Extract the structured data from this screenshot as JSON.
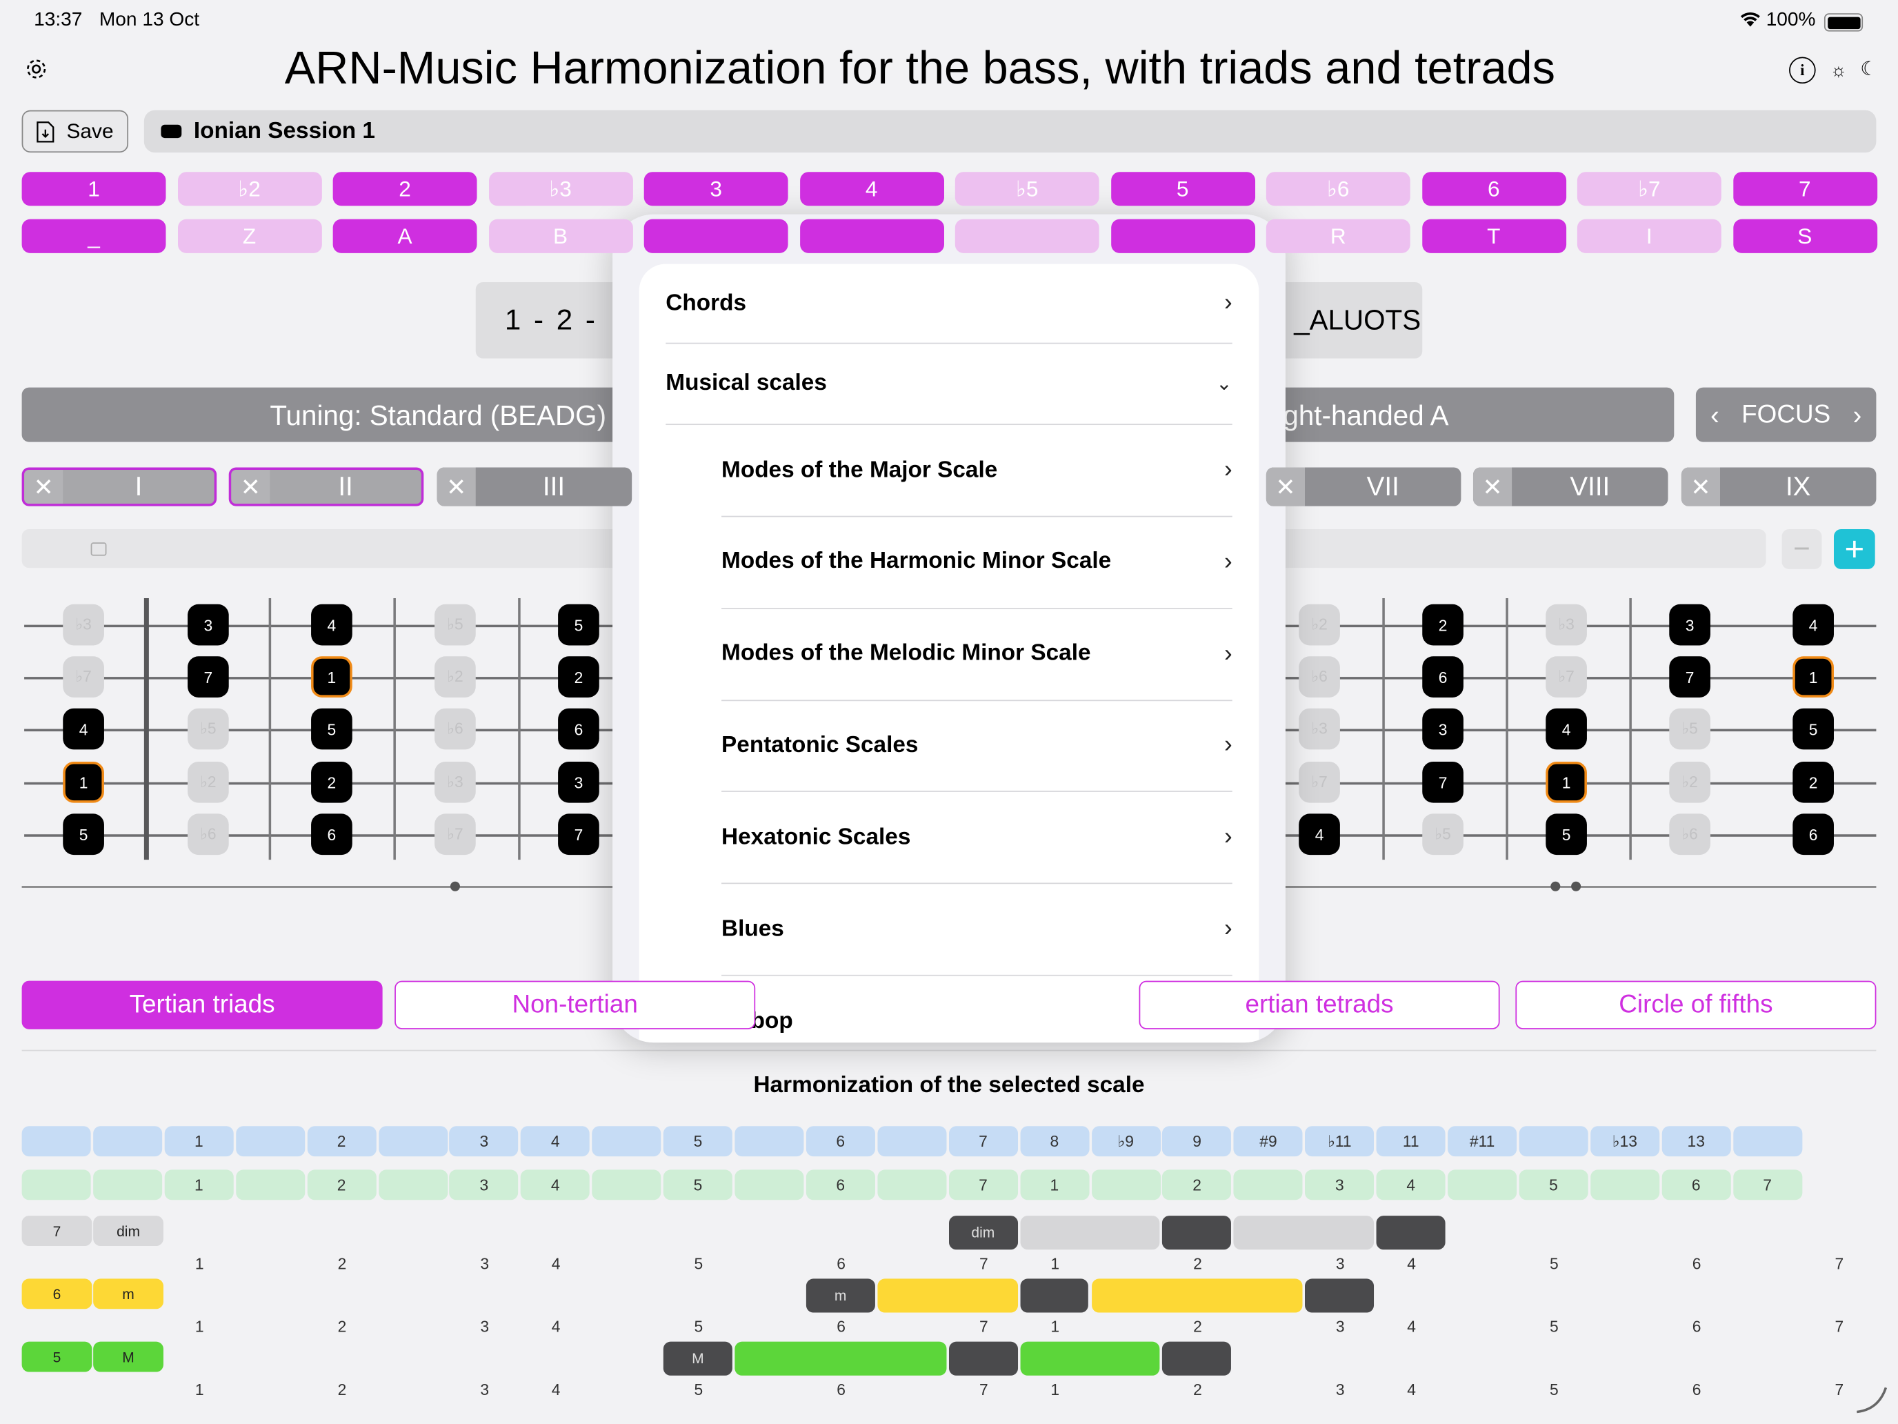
{
  "status": {
    "time": "13:37",
    "date": "Mon 13 Oct",
    "battery": "100%"
  },
  "header": {
    "title": "ARN-Music   Harmonization for the bass, with triads and tetrads"
  },
  "toolbar": {
    "save_label": "Save",
    "session": "Ionian Session 1"
  },
  "degrees": [
    {
      "label": "1",
      "on": true
    },
    {
      "label": "♭2",
      "on": false
    },
    {
      "label": "2",
      "on": true
    },
    {
      "label": "♭3",
      "on": false
    },
    {
      "label": "3",
      "on": true
    },
    {
      "label": "4",
      "on": true
    },
    {
      "label": "♭5",
      "on": false
    },
    {
      "label": "5",
      "on": true
    },
    {
      "label": "♭6",
      "on": false
    },
    {
      "label": "6",
      "on": true
    },
    {
      "label": "♭7",
      "on": false
    },
    {
      "label": "7",
      "on": true
    }
  ],
  "letters": [
    {
      "label": "_",
      "on": true
    },
    {
      "label": "Z",
      "on": false
    },
    {
      "label": "A",
      "on": true
    },
    {
      "label": "B",
      "on": false
    },
    {
      "label": "",
      "on": true
    },
    {
      "label": "",
      "on": true
    },
    {
      "label": "",
      "on": false
    },
    {
      "label": "",
      "on": true
    },
    {
      "label": "R",
      "on": false
    },
    {
      "label": "T",
      "on": true
    },
    {
      "label": "I",
      "on": false
    },
    {
      "label": "S",
      "on": true
    }
  ],
  "pattern": {
    "left": "1 - 2 -",
    "right": "_ALUOTS"
  },
  "tuning": {
    "label": "Tuning: Standard (BEADG)",
    "right": "ght-handed A",
    "focus": "FOCUS"
  },
  "positions": [
    {
      "label": "I",
      "sel": true
    },
    {
      "label": "II",
      "sel": true
    },
    {
      "label": "III",
      "sel": false
    },
    {
      "label": "VII",
      "sel": false
    },
    {
      "label": "VIII",
      "sel": false
    },
    {
      "label": "IX",
      "sel": false
    }
  ],
  "fretboard": {
    "strings": [
      [
        "♭3",
        "3",
        "4",
        "♭5",
        "5",
        "♭2",
        "2",
        "♭3",
        "3",
        "4"
      ],
      [
        "♭7",
        "7",
        "1",
        "♭2",
        "2",
        "♭6",
        "6",
        "♭7",
        "7",
        "1"
      ],
      [
        "4",
        "♭5",
        "5",
        "♭6",
        "6",
        "♭3",
        "3",
        "4",
        "♭5",
        "5"
      ],
      [
        "1",
        "♭2",
        "2",
        "♭3",
        "3",
        "♭7",
        "7",
        "1",
        "♭2",
        "2"
      ],
      [
        "5",
        "♭6",
        "6",
        "♭7",
        "7",
        "4",
        "♭5",
        "5",
        "♭6",
        "6"
      ]
    ]
  },
  "tabs": [
    "Tertian triads",
    "Non-tertian",
    "ertian tetrads",
    "Circle of fifths"
  ],
  "harmonization": {
    "title": "Harmonization of the selected scale",
    "blue": [
      "",
      "",
      "1",
      "",
      "2",
      "",
      "3",
      "4",
      "",
      "5",
      "",
      "6",
      "",
      "7",
      "8",
      "♭9",
      "9",
      "#9",
      "♭11",
      "11",
      "#11",
      "",
      "♭13",
      "13",
      ""
    ],
    "green": [
      "",
      "",
      "1",
      "",
      "2",
      "",
      "3",
      "4",
      "",
      "5",
      "",
      "6",
      "",
      "7",
      "1",
      "",
      "2",
      "",
      "3",
      "4",
      "",
      "5",
      "",
      "6",
      "7"
    ],
    "numbers": [
      "1",
      "",
      "2",
      "",
      "3",
      "4",
      "",
      "5",
      "",
      "6",
      "",
      "7",
      "1",
      "",
      "2",
      "",
      "3",
      "4",
      "",
      "5",
      "",
      "6",
      "",
      "7"
    ],
    "rows": [
      {
        "deg": "7",
        "quality": "dim",
        "chord": "dim",
        "color": "#d9d9db"
      },
      {
        "deg": "6",
        "quality": "m",
        "chord": "m",
        "color": "#fdd835"
      },
      {
        "deg": "5",
        "quality": "M",
        "chord": "M",
        "color": "#5cd63a"
      }
    ]
  },
  "menu": {
    "chords": "Chords",
    "scales": "Musical scales",
    "items": [
      "Modes of the Major Scale",
      "Modes of the Harmonic Minor Scale",
      "Modes of the Melodic Minor Scale",
      "Pentatonic Scales",
      "Hexatonic Scales",
      "Blues",
      "Bebop"
    ]
  }
}
